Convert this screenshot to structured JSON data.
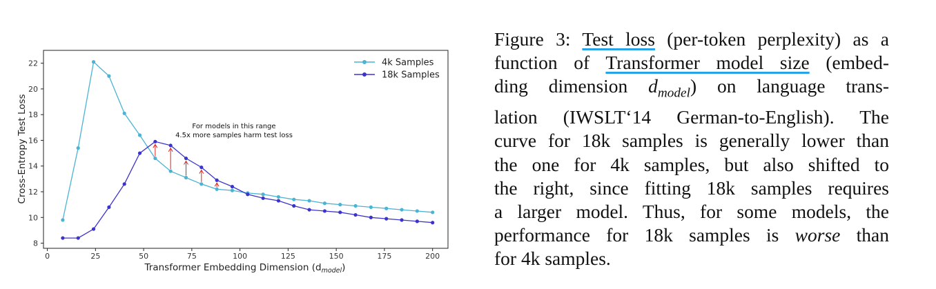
{
  "chart_data": {
    "type": "line",
    "xlabel": "Transformer Embedding Dimension (d",
    "xlabel_sub": "model",
    "xlabel_close": ")",
    "ylabel": "Cross-Entropy Test Loss",
    "xlim": [
      -2,
      208
    ],
    "ylim": [
      7.6,
      23.0
    ],
    "xticks": [
      0,
      25,
      50,
      75,
      100,
      125,
      150,
      175,
      200
    ],
    "yticks": [
      8,
      10,
      12,
      14,
      16,
      18,
      20,
      22
    ],
    "grid": false,
    "legend_position": "top-right",
    "series": [
      {
        "name": "4k Samples",
        "color": "#4bb3d3",
        "x": [
          8,
          16,
          24,
          32,
          40,
          48,
          56,
          64,
          72,
          80,
          88,
          96,
          104,
          112,
          120,
          128,
          136,
          144,
          152,
          160,
          168,
          176,
          184,
          192,
          200
        ],
        "y": [
          9.8,
          15.4,
          22.1,
          21.0,
          18.1,
          16.4,
          14.6,
          13.6,
          13.1,
          12.6,
          12.2,
          12.1,
          11.9,
          11.8,
          11.6,
          11.4,
          11.3,
          11.1,
          11.0,
          10.9,
          10.8,
          10.7,
          10.6,
          10.5,
          10.4
        ]
      },
      {
        "name": "18k Samples",
        "color": "#3b33cc",
        "x": [
          8,
          16,
          24,
          32,
          40,
          48,
          56,
          64,
          72,
          80,
          88,
          96,
          104,
          112,
          120,
          128,
          136,
          144,
          152,
          160,
          168,
          176,
          184,
          192,
          200
        ],
        "y": [
          8.4,
          8.4,
          9.1,
          10.8,
          12.6,
          15.0,
          15.9,
          15.6,
          14.6,
          13.9,
          12.9,
          12.4,
          11.8,
          11.5,
          11.3,
          10.9,
          10.6,
          10.5,
          10.4,
          10.2,
          10.0,
          9.9,
          9.8,
          9.7,
          9.6
        ]
      }
    ],
    "annotation": {
      "lines": [
        "For models in this range",
        "4.5x more samples harm test loss"
      ],
      "arrows": [
        {
          "x": 56,
          "from": 14.6,
          "to": 15.9
        },
        {
          "x": 64,
          "from": 13.6,
          "to": 15.6
        },
        {
          "x": 72,
          "from": 13.1,
          "to": 14.6
        },
        {
          "x": 80,
          "from": 12.6,
          "to": 13.9
        },
        {
          "x": 88,
          "from": 12.2,
          "to": 12.9
        }
      ],
      "arrow_color": "#e0231d"
    }
  },
  "caption": {
    "label": "Figure 3:",
    "term1": "Test loss",
    "text1": "(per-token perplexity) as a",
    "text2": "function of",
    "term2": "Transformer model size",
    "text3": "(embed-",
    "text4": "ding dimension",
    "math_base": "d",
    "math_sub": "model",
    "text5": ") on language trans-",
    "text6": "lation (IWSLT‘14 German-to-English). The",
    "text7": "curve for 18k samples is generally lower than",
    "text8": "the one for 4k samples, but also shifted to",
    "text9": "the right, since fitting 18k samples requires",
    "text10": "a larger model. Thus, for some models, the",
    "text11": "performance for 18k samples is",
    "emph": "worse",
    "text12": "than",
    "text13": "for 4k samples."
  }
}
